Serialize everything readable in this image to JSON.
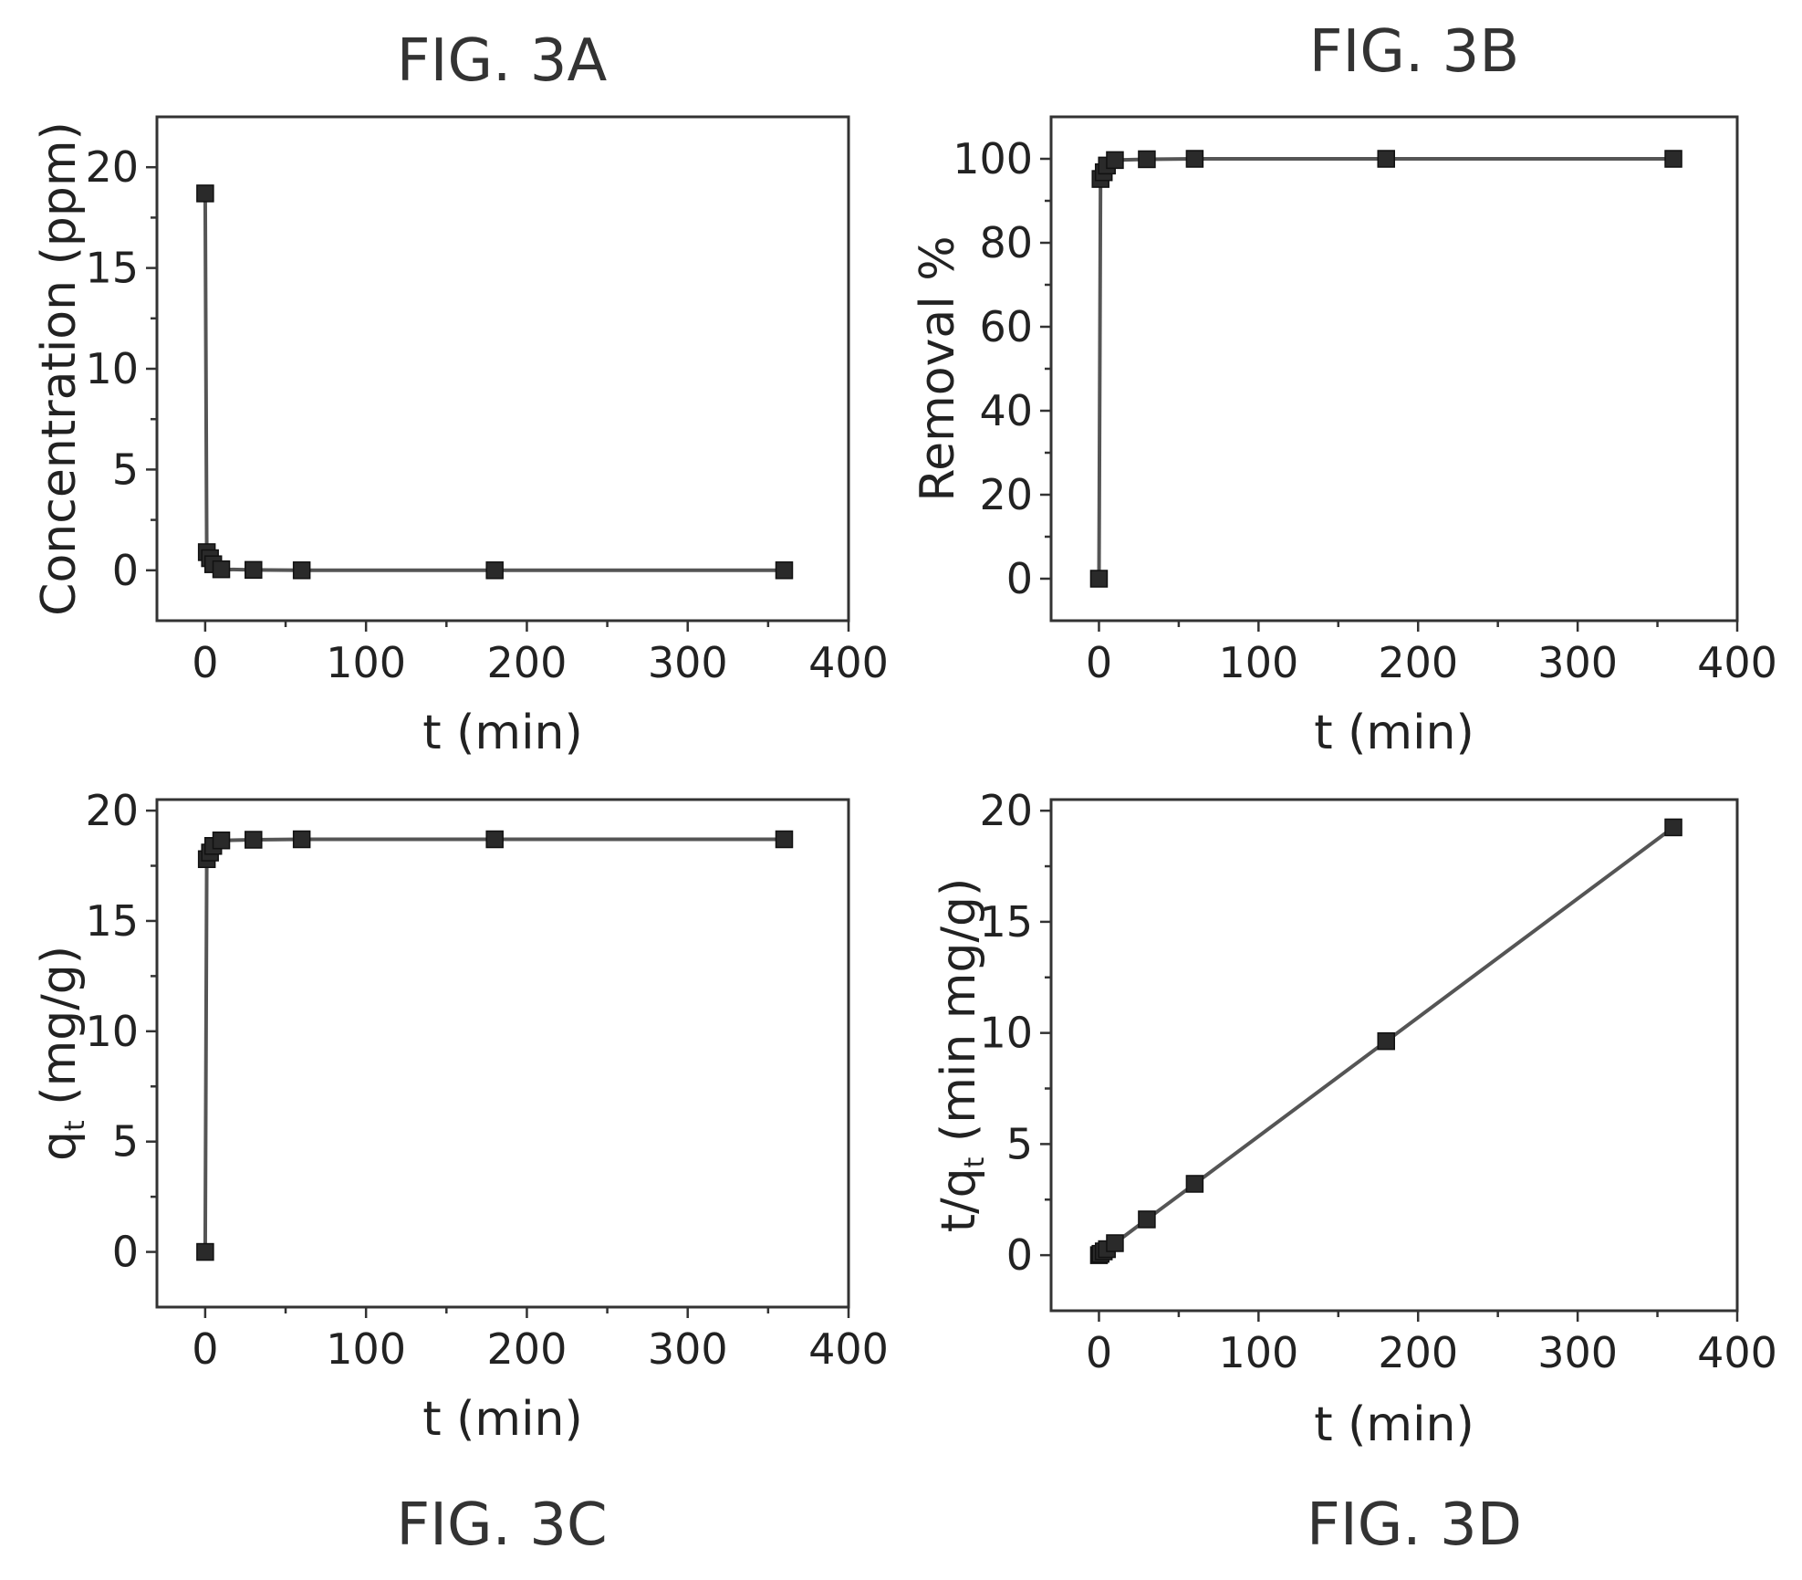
{
  "figure_labels": [
    "FIG. 3A",
    "FIG. 3B",
    "FIG. 3C",
    "FIG. 3D"
  ],
  "chart_data": [
    {
      "id": "A",
      "type": "line",
      "title": "FIG. 3A",
      "xlabel": "t (min)",
      "ylabel": "Concentration (ppm)",
      "xlim": [
        -30,
        400
      ],
      "ylim": [
        -2.5,
        22.5
      ],
      "xticks": [
        0,
        100,
        200,
        300,
        400
      ],
      "yticks": [
        0,
        5,
        10,
        15,
        20
      ],
      "series": [
        {
          "x": [
            0,
            1,
            3,
            5,
            10,
            30,
            60,
            180,
            360
          ],
          "y": [
            18.7,
            0.9,
            0.6,
            0.3,
            0.05,
            0.02,
            0.0,
            0.0,
            0.0
          ]
        }
      ]
    },
    {
      "id": "B",
      "type": "line",
      "title": "FIG. 3B",
      "xlabel": "t (min)",
      "ylabel": "Removal %",
      "xlim": [
        -30,
        400
      ],
      "ylim": [
        -10,
        110
      ],
      "xticks": [
        0,
        100,
        200,
        300,
        400
      ],
      "yticks": [
        0,
        20,
        40,
        60,
        80,
        100
      ],
      "series": [
        {
          "x": [
            0,
            1,
            3,
            5,
            10,
            30,
            60,
            180,
            360
          ],
          "y": [
            0,
            95.2,
            96.8,
            98.4,
            99.7,
            99.9,
            100,
            100,
            100
          ]
        }
      ]
    },
    {
      "id": "C",
      "type": "line",
      "title": "FIG. 3C",
      "xlabel": "t (min)",
      "ylabel": "q",
      "ylabel_sub": "t",
      "ylabel_suffix": " (mg/g)",
      "xlim": [
        -30,
        400
      ],
      "ylim": [
        -2.5,
        20.5
      ],
      "xticks": [
        0,
        100,
        200,
        300,
        400
      ],
      "yticks": [
        0,
        5,
        10,
        15,
        20
      ],
      "series": [
        {
          "x": [
            0,
            1,
            3,
            5,
            10,
            30,
            60,
            180,
            360
          ],
          "y": [
            0,
            17.8,
            18.1,
            18.4,
            18.65,
            18.68,
            18.7,
            18.7,
            18.7
          ]
        }
      ]
    },
    {
      "id": "D",
      "type": "line",
      "title": "FIG. 3D",
      "xlabel": "t (min)",
      "ylabel": "t/q",
      "ylabel_sub": "t",
      "ylabel_suffix": " (min mg/g)",
      "xlim": [
        -30,
        400
      ],
      "ylim": [
        -2.5,
        20.5
      ],
      "xticks": [
        0,
        100,
        200,
        300,
        400
      ],
      "yticks": [
        0,
        5,
        10,
        15,
        20
      ],
      "series": [
        {
          "x": [
            0,
            1,
            3,
            5,
            10,
            30,
            60,
            180,
            360
          ],
          "y": [
            0,
            0.06,
            0.17,
            0.27,
            0.54,
            1.61,
            3.21,
            9.63,
            19.25
          ]
        }
      ]
    }
  ]
}
